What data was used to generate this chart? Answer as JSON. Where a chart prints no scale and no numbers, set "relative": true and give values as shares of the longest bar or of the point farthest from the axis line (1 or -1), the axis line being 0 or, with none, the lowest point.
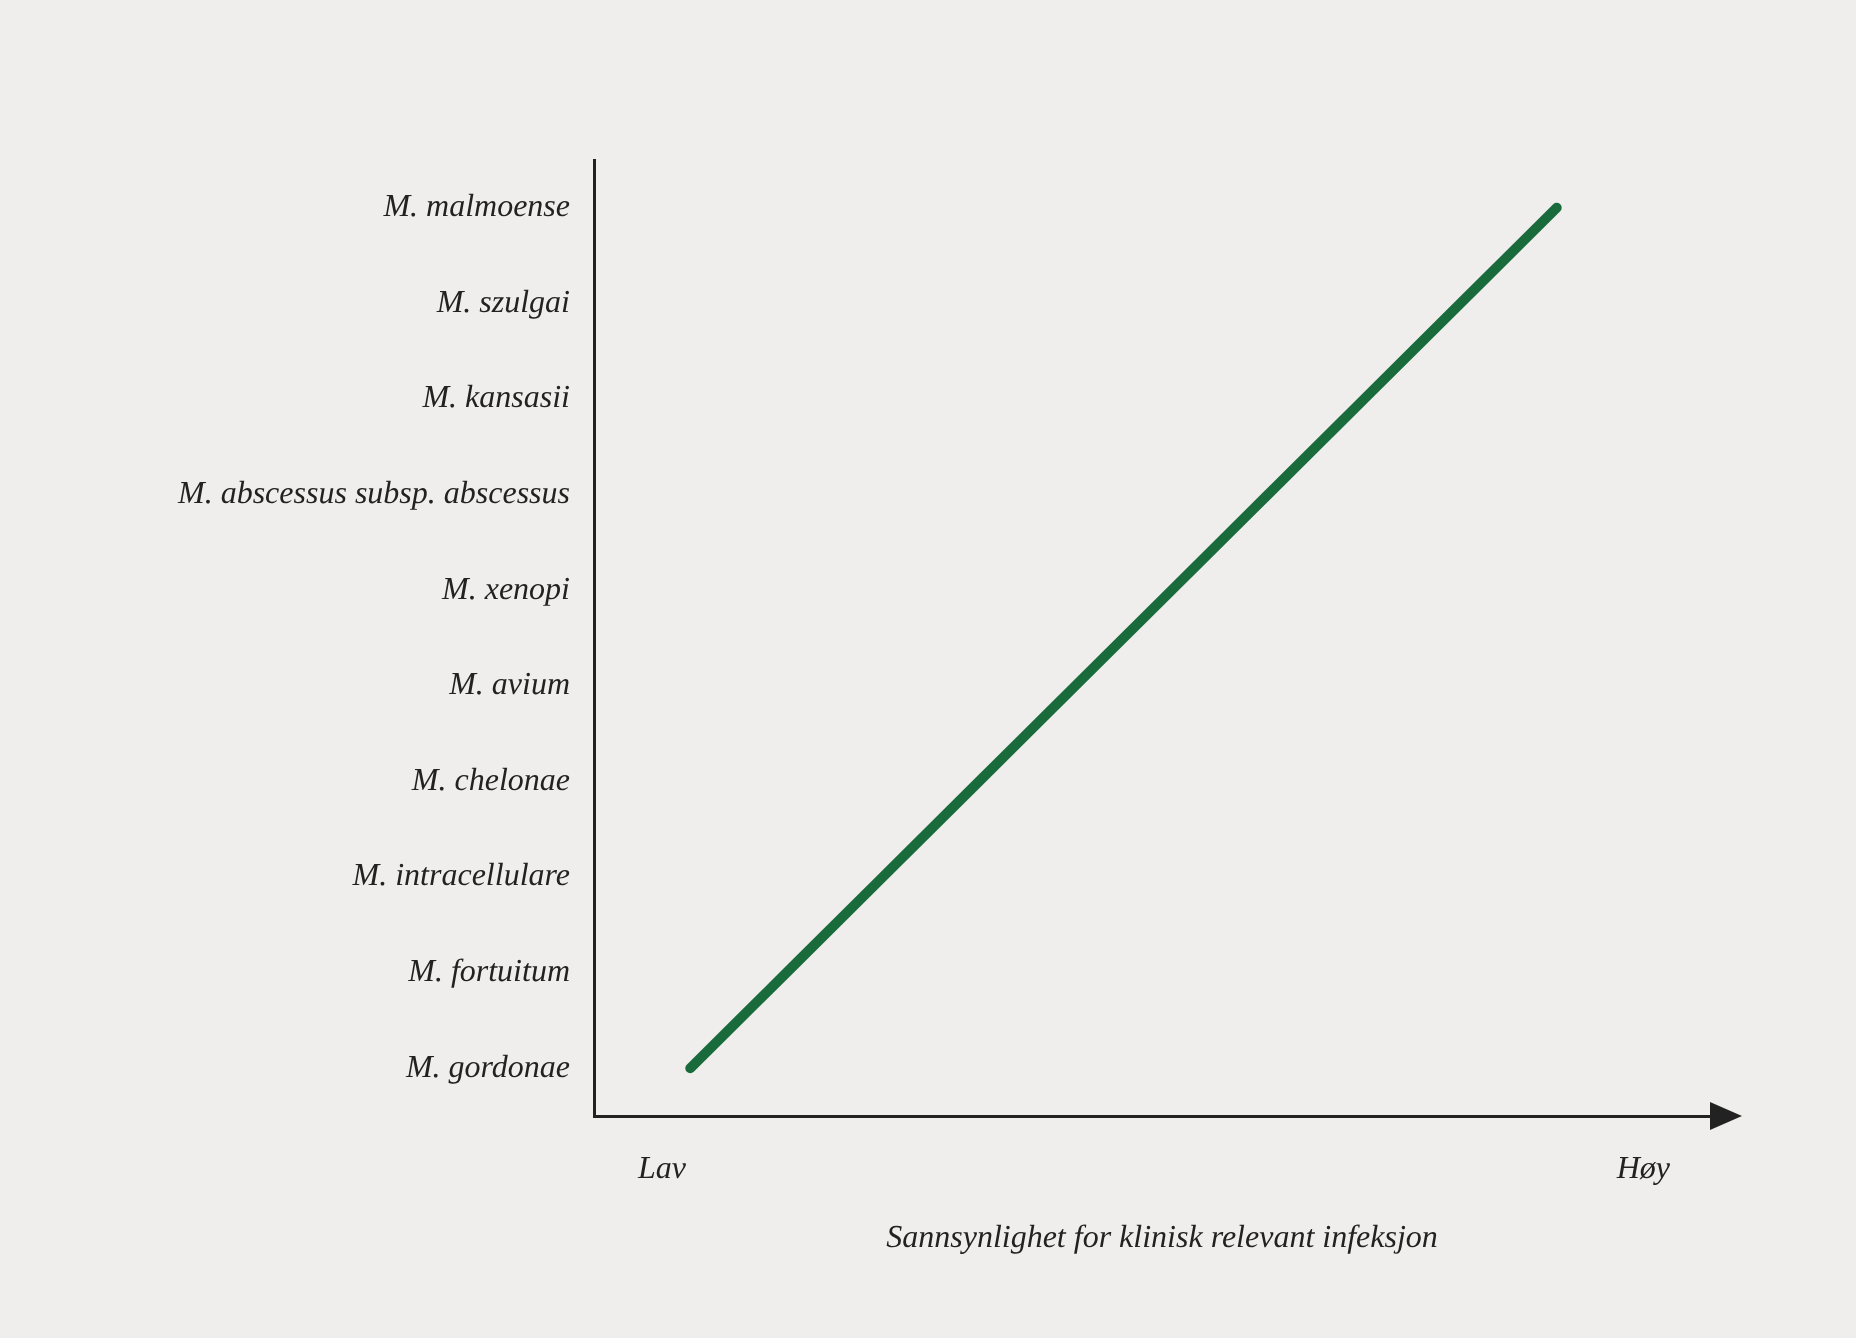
{
  "chart_data": {
    "type": "line",
    "orientation": "horizontal",
    "relative": true,
    "xlabel": "Sannsynlighet for klinisk relevant infeksjon",
    "categories": [
      "M. malmoense",
      "M. szulgai",
      "M. kansasii",
      "M. abscessus subsp. abscessus",
      "M. xenopi",
      "M. avium",
      "M. chelonae",
      "M. intracellulare",
      "M. fortuitum",
      "M. gordonae"
    ],
    "series": [
      {
        "color": "#1a6b3c",
        "values": [
          1.0,
          0.9,
          0.8,
          0.7,
          0.6,
          0.5,
          0.4,
          0.3,
          0.2,
          0.1
        ]
      }
    ],
    "annotations": [
      "Lav",
      "Høy"
    ],
    "grid": false,
    "legend": false,
    "marker": "none",
    "line_style": "solid"
  }
}
